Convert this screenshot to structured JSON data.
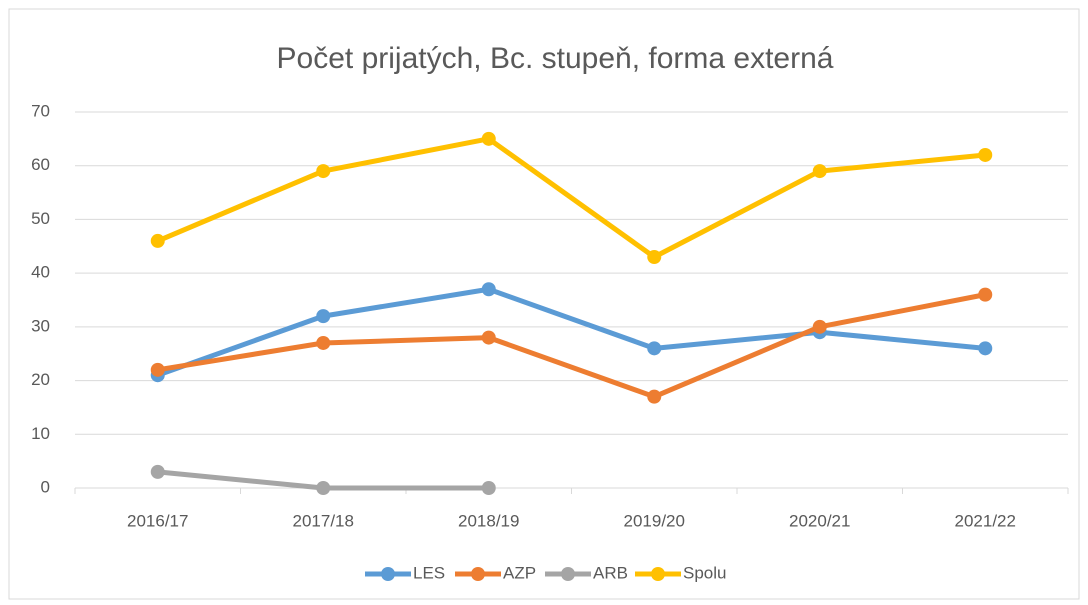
{
  "chart_data": {
    "type": "line",
    "title": "Počet prijatých, Bc. stupeň, forma externá",
    "categories": [
      "2016/17",
      "2017/18",
      "2018/19",
      "2019/20",
      "2020/21",
      "2021/22"
    ],
    "series": [
      {
        "name": "LES",
        "color": "#5b9bd5",
        "values": [
          21,
          32,
          37,
          26,
          29,
          26
        ]
      },
      {
        "name": "AZP",
        "color": "#ed7d31",
        "values": [
          22,
          27,
          28,
          17,
          30,
          36
        ]
      },
      {
        "name": "ARB",
        "color": "#a5a5a5",
        "values": [
          3,
          0,
          0,
          null,
          null,
          null
        ]
      },
      {
        "name": "Spolu",
        "color": "#ffc000",
        "values": [
          46,
          59,
          65,
          43,
          59,
          62
        ]
      }
    ],
    "ylim": [
      0,
      70
    ],
    "yticks": [
      0,
      10,
      20,
      30,
      40,
      50,
      60,
      70
    ],
    "grid": true,
    "legend": "bottom"
  }
}
